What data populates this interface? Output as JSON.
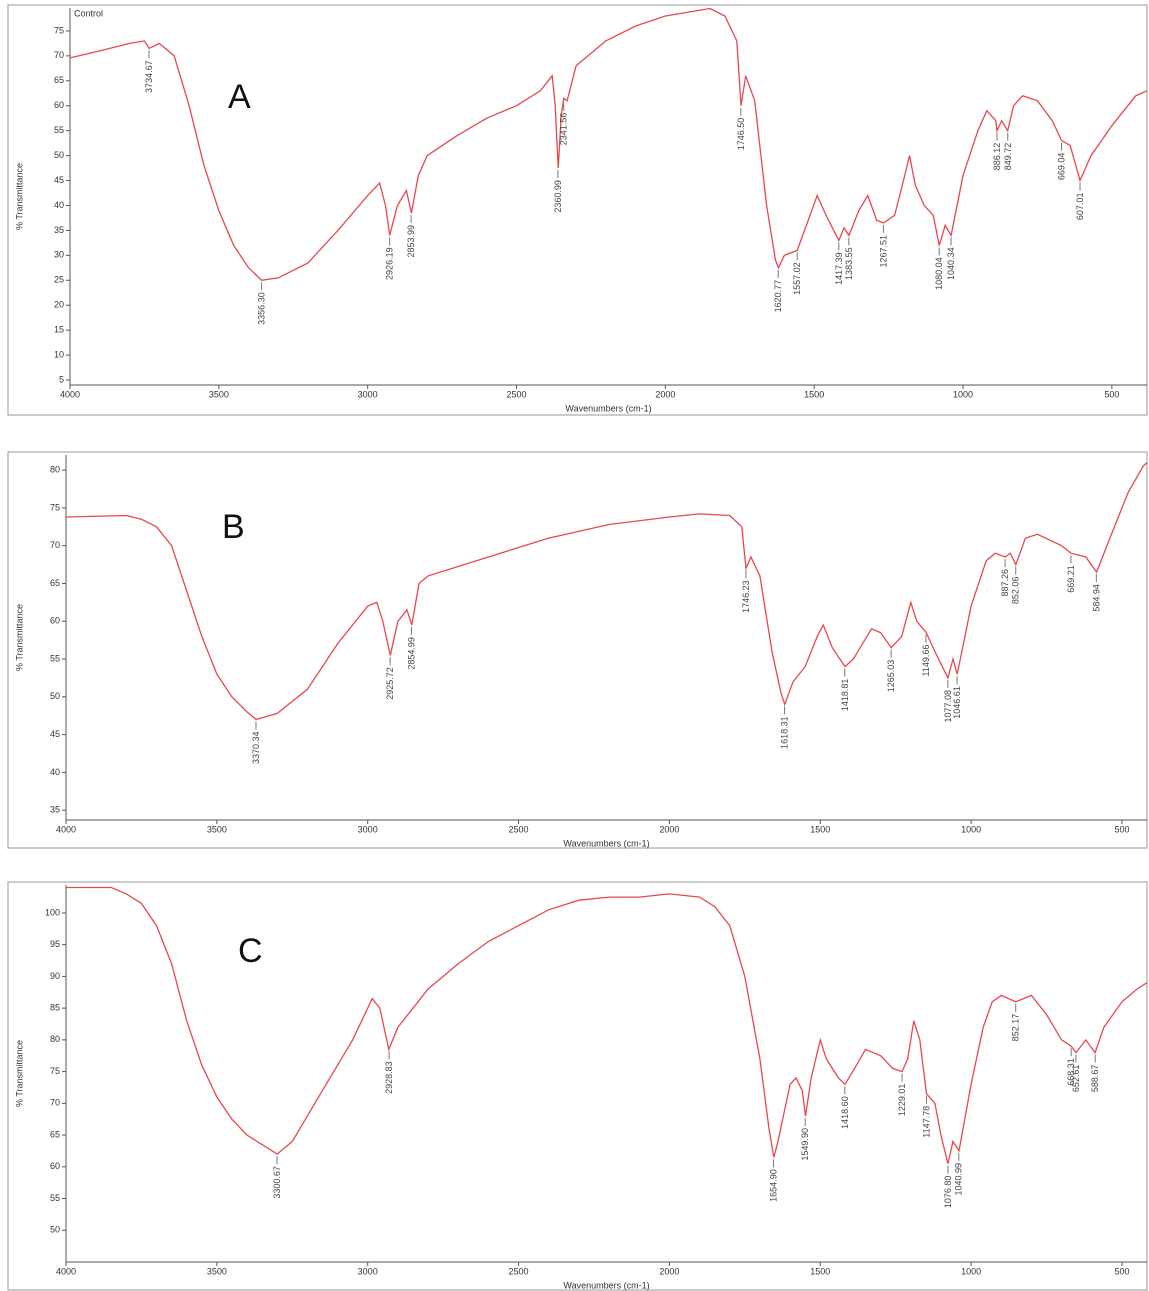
{
  "chart_data": [
    {
      "type": "line",
      "panel": "A",
      "title": "Control",
      "xlabel": "Wavenumbers (cm-1)",
      "ylabel": "% Transmittance",
      "color": "#e8474f",
      "xlim": [
        4000,
        382
      ],
      "ylim": [
        4,
        79.6
      ],
      "xticks": [
        4000,
        3500,
        3000,
        2500,
        2000,
        1500,
        1000,
        500
      ],
      "yticks": [
        5,
        10,
        15,
        20,
        25,
        30,
        35,
        40,
        45,
        50,
        55,
        60,
        65,
        70,
        75
      ],
      "x": [
        4000,
        3900,
        3800,
        3750,
        3734,
        3700,
        3650,
        3600,
        3550,
        3500,
        3450,
        3400,
        3356,
        3300,
        3200,
        3100,
        3000,
        2960,
        2940,
        2926,
        2900,
        2870,
        2853,
        2830,
        2800,
        2700,
        2600,
        2500,
        2420,
        2380,
        2370,
        2360,
        2350,
        2341,
        2330,
        2300,
        2200,
        2100,
        2000,
        1900,
        1850,
        1800,
        1760,
        1746,
        1730,
        1700,
        1660,
        1630,
        1620,
        1600,
        1557,
        1520,
        1490,
        1460,
        1430,
        1417,
        1400,
        1383,
        1350,
        1320,
        1290,
        1267,
        1230,
        1200,
        1180,
        1160,
        1130,
        1100,
        1080,
        1060,
        1040,
        1000,
        950,
        920,
        890,
        886,
        870,
        850,
        830,
        800,
        750,
        700,
        669,
        640,
        607,
        570,
        500,
        420,
        382
      ],
      "values": [
        69.6,
        71,
        72.5,
        73,
        71.5,
        72.5,
        70,
        60,
        48,
        39,
        32,
        27.5,
        25,
        25.5,
        28.5,
        35,
        42,
        44.5,
        40,
        34,
        40,
        43,
        38.5,
        46,
        50,
        54,
        57.5,
        60,
        63,
        66,
        60,
        47.5,
        58,
        61.5,
        61,
        68,
        73,
        76,
        78,
        79,
        79.5,
        78,
        73,
        60,
        66,
        61,
        40,
        29,
        27.5,
        30,
        31,
        37,
        42,
        38,
        34.5,
        33,
        35.5,
        34,
        39,
        42,
        37,
        36.5,
        38,
        45,
        50,
        44,
        40,
        38,
        32,
        36,
        34,
        46,
        55,
        59,
        57,
        55,
        57,
        55,
        60,
        62,
        61,
        57,
        53,
        52,
        45,
        50,
        56,
        62,
        63
      ],
      "peaks": [
        {
          "x": 3734.67,
          "y": 71.5,
          "label": "3734.67"
        },
        {
          "x": 3356.3,
          "y": 25,
          "label": "3356.30"
        },
        {
          "x": 2926.19,
          "y": 34,
          "label": "2926.19"
        },
        {
          "x": 2853.99,
          "y": 38.5,
          "label": "2853.99"
        },
        {
          "x": 2360.99,
          "y": 47.5,
          "label": "2360.99"
        },
        {
          "x": 2341.56,
          "y": 61,
          "label": "2341.56"
        },
        {
          "x": 1746.5,
          "y": 60,
          "label": "1746.50"
        },
        {
          "x": 1620.77,
          "y": 27.5,
          "label": "1620.77"
        },
        {
          "x": 1557.02,
          "y": 31,
          "label": "1557.02"
        },
        {
          "x": 1417.39,
          "y": 33,
          "label": "1417.39"
        },
        {
          "x": 1383.55,
          "y": 34,
          "label": "1383.55"
        },
        {
          "x": 1267.51,
          "y": 36.5,
          "label": "1267.51"
        },
        {
          "x": 1080.04,
          "y": 32,
          "label": "1080.04"
        },
        {
          "x": 1040.34,
          "y": 34,
          "label": "1040.34"
        },
        {
          "x": 886.12,
          "y": 55,
          "label": "886.12"
        },
        {
          "x": 849.72,
          "y": 55,
          "label": "849.72"
        },
        {
          "x": 669.04,
          "y": 53,
          "label": "669.04"
        },
        {
          "x": 607.01,
          "y": 45,
          "label": "607.01"
        }
      ]
    },
    {
      "type": "line",
      "panel": "B",
      "xlabel": "Wavenumbers (cm-1)",
      "ylabel": "% Transmittance",
      "color": "#e8474f",
      "xlim": [
        4000,
        417
      ],
      "ylim": [
        33.7,
        82
      ],
      "xticks": [
        4000,
        3500,
        3000,
        2500,
        2000,
        1500,
        1000,
        500
      ],
      "yticks": [
        35,
        40,
        45,
        50,
        55,
        60,
        65,
        70,
        75,
        80
      ],
      "x": [
        4000,
        3800,
        3750,
        3700,
        3650,
        3600,
        3550,
        3500,
        3450,
        3400,
        3370,
        3300,
        3200,
        3100,
        3000,
        2970,
        2950,
        2925,
        2900,
        2870,
        2854,
        2830,
        2800,
        2600,
        2400,
        2200,
        2000,
        1900,
        1800,
        1760,
        1746,
        1730,
        1700,
        1660,
        1630,
        1618,
        1590,
        1550,
        1510,
        1490,
        1460,
        1418,
        1390,
        1330,
        1300,
        1265,
        1230,
        1200,
        1180,
        1149,
        1120,
        1077,
        1060,
        1046,
        1000,
        950,
        920,
        887,
        870,
        852,
        820,
        780,
        700,
        669,
        620,
        584,
        540,
        480,
        430,
        417
      ],
      "values": [
        73.8,
        74,
        73.5,
        72.5,
        70,
        64,
        58,
        53,
        50,
        48,
        47,
        47.8,
        51,
        57,
        62,
        62.5,
        60,
        55.5,
        60,
        61.5,
        59.5,
        65,
        66,
        68.5,
        71,
        72.8,
        73.8,
        74.2,
        74,
        72.5,
        67,
        68.5,
        66,
        56,
        50.5,
        49,
        52,
        54,
        58,
        59.5,
        56.5,
        54,
        55,
        59,
        58.5,
        56.5,
        58,
        62.5,
        60,
        58.5,
        56,
        52.5,
        55,
        53,
        62,
        68,
        69,
        68.5,
        69,
        67.5,
        71,
        71.5,
        70,
        69,
        68.5,
        66.5,
        71,
        77,
        80.5,
        81
      ],
      "peaks": [
        {
          "x": 3370.34,
          "y": 47,
          "label": "3370.34"
        },
        {
          "x": 2925.72,
          "y": 55.5,
          "label": "2925.72"
        },
        {
          "x": 2854.99,
          "y": 59.5,
          "label": "2854.99"
        },
        {
          "x": 1746.23,
          "y": 67,
          "label": "1746.23"
        },
        {
          "x": 1618.31,
          "y": 49,
          "label": "1618.31"
        },
        {
          "x": 1418.81,
          "y": 54,
          "label": "1418.81"
        },
        {
          "x": 1265.03,
          "y": 56.5,
          "label": "1265.03"
        },
        {
          "x": 1149.66,
          "y": 58.5,
          "label": "1149.66"
        },
        {
          "x": 1077.08,
          "y": 52.5,
          "label": "1077.08"
        },
        {
          "x": 1046.61,
          "y": 53,
          "label": "1046.61"
        },
        {
          "x": 887.26,
          "y": 68.5,
          "label": "887.26"
        },
        {
          "x": 852.06,
          "y": 67.5,
          "label": "852.06"
        },
        {
          "x": 669.21,
          "y": 69,
          "label": "669.21"
        },
        {
          "x": 584.94,
          "y": 66.5,
          "label": "584.94"
        }
      ]
    },
    {
      "type": "line",
      "panel": "C",
      "xlabel": "Wavenumbers (cm-1)",
      "ylabel": "% Transmittance",
      "color": "#e8474f",
      "xlim": [
        4000,
        417
      ],
      "ylim": [
        45,
        104.4
      ],
      "xticks": [
        4000,
        3500,
        3000,
        2500,
        2000,
        1500,
        1000,
        500
      ],
      "yticks": [
        50,
        55,
        60,
        65,
        70,
        75,
        80,
        85,
        90,
        95,
        100
      ],
      "x": [
        4000,
        3850,
        3800,
        3750,
        3700,
        3650,
        3600,
        3550,
        3500,
        3450,
        3400,
        3350,
        3300,
        3250,
        3150,
        3050,
        3000,
        2985,
        2960,
        2930,
        2900,
        2850,
        2800,
        2700,
        2600,
        2500,
        2400,
        2300,
        2200,
        2100,
        2000,
        1900,
        1850,
        1800,
        1750,
        1700,
        1670,
        1654,
        1640,
        1600,
        1580,
        1560,
        1549,
        1530,
        1500,
        1480,
        1440,
        1418,
        1380,
        1350,
        1300,
        1260,
        1229,
        1210,
        1190,
        1170,
        1148,
        1120,
        1100,
        1077,
        1060,
        1040,
        1000,
        960,
        930,
        900,
        852,
        800,
        750,
        700,
        668,
        652,
        620,
        589,
        560,
        500,
        450,
        417
      ],
      "values": [
        104,
        104,
        103,
        101.5,
        98,
        92,
        83,
        76,
        71,
        67.5,
        65,
        63.5,
        62,
        64,
        72,
        80,
        85,
        86.5,
        85,
        78.5,
        82,
        85,
        88,
        92,
        95.5,
        98,
        100.5,
        102,
        102.5,
        102.5,
        103,
        102.5,
        101,
        98,
        90,
        77,
        66,
        61.5,
        64,
        73,
        74,
        72,
        68,
        74,
        80,
        77,
        74,
        73,
        76,
        78.5,
        77.5,
        75.5,
        75,
        77,
        83,
        80,
        71.5,
        70,
        65,
        60.5,
        64,
        62.5,
        73,
        82,
        86,
        87,
        86,
        87,
        84,
        80,
        79,
        78,
        80,
        78,
        82,
        86,
        88,
        89
      ],
      "peaks": [
        {
          "x": 3300.67,
          "y": 62,
          "label": "3300.67"
        },
        {
          "x": 2928.83,
          "y": 78.5,
          "label": "2928.83"
        },
        {
          "x": 1654.9,
          "y": 61.5,
          "label": "1654.90"
        },
        {
          "x": 1549.9,
          "y": 68,
          "label": "1549.90"
        },
        {
          "x": 1418.6,
          "y": 73,
          "label": "1418.60"
        },
        {
          "x": 1229.01,
          "y": 75,
          "label": "1229.01"
        },
        {
          "x": 1147.78,
          "y": 71.5,
          "label": "1147.78"
        },
        {
          "x": 1076.8,
          "y": 60.5,
          "label": "1076.80"
        },
        {
          "x": 1040.99,
          "y": 62.5,
          "label": "1040.99"
        },
        {
          "x": 852.17,
          "y": 86,
          "label": "852.17"
        },
        {
          "x": 668.31,
          "y": 79,
          "label": "668.31"
        },
        {
          "x": 652.61,
          "y": 78,
          "label": "652.61"
        },
        {
          "x": 588.67,
          "y": 78,
          "label": "588.67"
        }
      ]
    }
  ]
}
